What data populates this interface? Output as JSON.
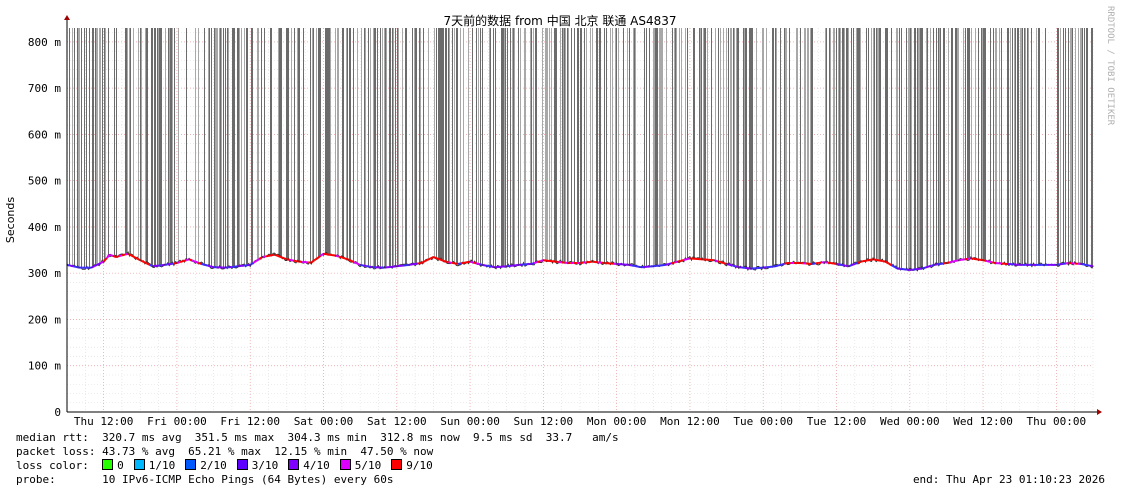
{
  "chart_data": {
    "type": "line",
    "title": "7天前的数据 from  中国 北京 联通 AS4837",
    "ylabel": "Seconds",
    "watermark": "RRDTOOL / TOBI OETIKER",
    "ylim": [
      0,
      0.83
    ],
    "yticks": [
      {
        "value": 0,
        "label": "0"
      },
      {
        "value": 0.1,
        "label": "100 m"
      },
      {
        "value": 0.2,
        "label": "200 m"
      },
      {
        "value": 0.3,
        "label": "300 m"
      },
      {
        "value": 0.4,
        "label": "400 m"
      },
      {
        "value": 0.5,
        "label": "500 m"
      },
      {
        "value": 0.6,
        "label": "600 m"
      },
      {
        "value": 0.7,
        "label": "700 m"
      },
      {
        "value": 0.8,
        "label": "800 m"
      }
    ],
    "xlim_hours": [
      0,
      168
    ],
    "xticks": [
      {
        "hour": 6,
        "label": "Thu 12:00"
      },
      {
        "hour": 18,
        "label": "Fri 00:00"
      },
      {
        "hour": 30,
        "label": "Fri 12:00"
      },
      {
        "hour": 42,
        "label": "Sat 00:00"
      },
      {
        "hour": 54,
        "label": "Sat 12:00"
      },
      {
        "hour": 66,
        "label": "Sun 00:00"
      },
      {
        "hour": 78,
        "label": "Sun 12:00"
      },
      {
        "hour": 90,
        "label": "Mon 00:00"
      },
      {
        "hour": 102,
        "label": "Mon 12:00"
      },
      {
        "hour": 114,
        "label": "Tue 00:00"
      },
      {
        "hour": 126,
        "label": "Tue 12:00"
      },
      {
        "hour": 138,
        "label": "Wed 00:00"
      },
      {
        "hour": 150,
        "label": "Wed 12:00"
      },
      {
        "hour": 162,
        "label": "Thu 00:00"
      }
    ],
    "series": [
      {
        "name": "median rtt",
        "x_hours": [
          0,
          2,
          4,
          6,
          7,
          8,
          10,
          12,
          14,
          16,
          18,
          20,
          22,
          24,
          26,
          28,
          30,
          32,
          34,
          36,
          38,
          40,
          42,
          44,
          46,
          48,
          50,
          52,
          54,
          56,
          58,
          60,
          62,
          64,
          66,
          68,
          70,
          72,
          74,
          76,
          78,
          80,
          82,
          84,
          86,
          88,
          90,
          92,
          94,
          96,
          98,
          100,
          102,
          104,
          106,
          108,
          110,
          112,
          114,
          116,
          118,
          120,
          122,
          124,
          126,
          128,
          130,
          132,
          134,
          136,
          138,
          140,
          142,
          144,
          146,
          148,
          150,
          152,
          154,
          156,
          158,
          160,
          162,
          164,
          166,
          168
        ],
        "values": [
          0.318,
          0.312,
          0.312,
          0.325,
          0.34,
          0.335,
          0.342,
          0.328,
          0.315,
          0.318,
          0.322,
          0.33,
          0.32,
          0.313,
          0.312,
          0.315,
          0.318,
          0.335,
          0.34,
          0.33,
          0.325,
          0.323,
          0.342,
          0.338,
          0.33,
          0.318,
          0.313,
          0.312,
          0.315,
          0.318,
          0.322,
          0.335,
          0.325,
          0.32,
          0.325,
          0.318,
          0.313,
          0.315,
          0.318,
          0.32,
          0.328,
          0.325,
          0.322,
          0.322,
          0.325,
          0.322,
          0.32,
          0.318,
          0.313,
          0.315,
          0.318,
          0.325,
          0.332,
          0.33,
          0.328,
          0.32,
          0.313,
          0.31,
          0.312,
          0.315,
          0.322,
          0.322,
          0.32,
          0.324,
          0.32,
          0.315,
          0.325,
          0.33,
          0.325,
          0.31,
          0.307,
          0.31,
          0.318,
          0.322,
          0.328,
          0.332,
          0.328,
          0.322,
          0.32,
          0.318,
          0.318,
          0.318,
          0.318,
          0.322,
          0.32,
          0.315
        ]
      }
    ]
  },
  "stats": {
    "rtt_line": "median rtt:  320.7 ms avg  351.5 ms max  304.3 ms min  312.8 ms now  9.5 ms sd  33.7   am/s",
    "loss_line": "packet loss: 43.73 % avg  65.21 % max  12.15 % min  47.50 % now",
    "loss_color_label": "loss color:",
    "probe_line": "probe:       10 IPv6-ICMP Echo Pings (64 Bytes) every 60s",
    "end_line": "end: Thu Apr 23 01:10:23 2026"
  },
  "loss_colors": [
    {
      "label": "0",
      "color": "#26ff00"
    },
    {
      "label": "1/10",
      "color": "#00b8ff"
    },
    {
      "label": "2/10",
      "color": "#0059ff"
    },
    {
      "label": "3/10",
      "color": "#5e00ff"
    },
    {
      "label": "4/10",
      "color": "#7e00ff"
    },
    {
      "label": "5/10",
      "color": "#dd00ff"
    },
    {
      "label": "9/10",
      "color": "#ff0000"
    }
  ]
}
